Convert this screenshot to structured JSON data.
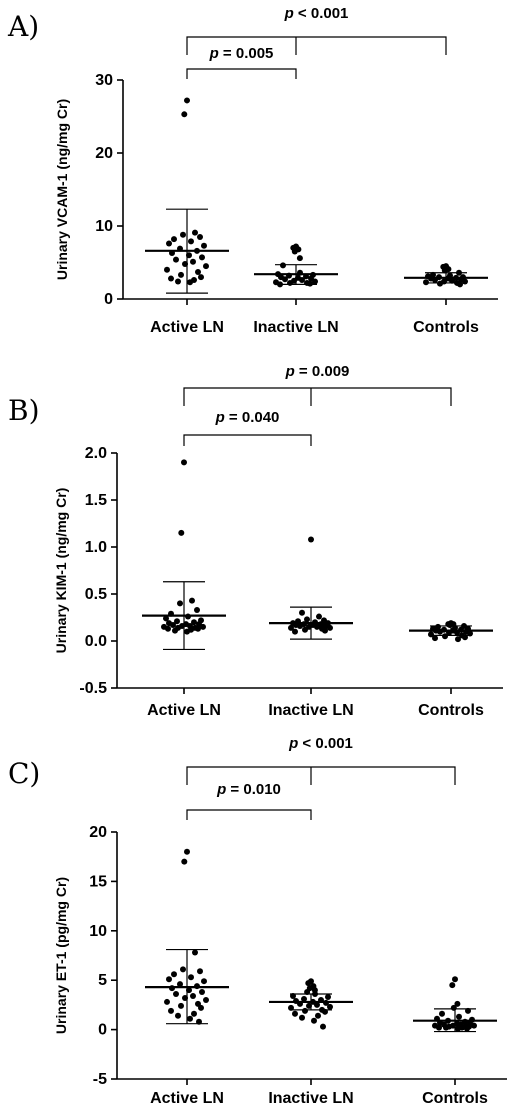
{
  "chart_data": [
    {
      "type": "scatter",
      "panel_label": "A)",
      "ylabel": "Urinary VCAM-1 (ng/mg Cr)",
      "ylim": [
        0,
        30
      ],
      "yticks": [
        0,
        10,
        20,
        30
      ],
      "categories": [
        "Active LN",
        "Inactive LN",
        "Controls"
      ],
      "series": [
        {
          "values": [
            27.2,
            25.3,
            9.1,
            8.8,
            8.5,
            8.2,
            7.9,
            7.6,
            7.3,
            6.9,
            6.6,
            6.3,
            6.0,
            5.7,
            5.4,
            5.1,
            4.8,
            4.5,
            4.0,
            3.7,
            3.3,
            3.0,
            2.8,
            2.6,
            2.4,
            2.3
          ],
          "mean": 6.6,
          "sd_low": 0.8,
          "sd_high": 12.3
        },
        {
          "values": [
            7.2,
            7.0,
            6.8,
            6.5,
            5.6,
            4.6,
            3.6,
            3.4,
            3.3,
            3.2,
            3.1,
            3.0,
            2.9,
            2.8,
            2.7,
            2.6,
            2.5,
            2.4,
            2.3,
            2.2,
            2.2,
            2.1,
            2.0
          ],
          "mean": 3.4,
          "sd_low": 2.0,
          "sd_high": 4.7
        },
        {
          "values": [
            4.5,
            4.4,
            4.1,
            3.9,
            3.6,
            3.3,
            3.2,
            3.1,
            3.0,
            3.0,
            2.9,
            2.8,
            2.8,
            2.7,
            2.6,
            2.5,
            2.4,
            2.4,
            2.3,
            2.2,
            2.1,
            2.0
          ],
          "mean": 2.9,
          "sd_low": 2.2,
          "sd_high": 3.6
        }
      ],
      "comparisons": [
        {
          "from": 0,
          "to": 1,
          "p_symbol": "p",
          "p_rest": " = 0.005"
        },
        {
          "from": 0,
          "to": 2,
          "p_symbol": "p",
          "p_rest": " < 0.001"
        }
      ]
    },
    {
      "type": "scatter",
      "panel_label": "B)",
      "ylabel": "Urinary KIM-1 (ng/mg Cr)",
      "ylim": [
        -0.5,
        2.0
      ],
      "yticks": [
        -0.5,
        0.0,
        0.5,
        1.0,
        1.5,
        2.0
      ],
      "tick_labels": [
        "-0.5",
        "0.0",
        "0.5",
        "1.0",
        "1.5",
        "2.0"
      ],
      "categories": [
        "Active LN",
        "Inactive LN",
        "Controls"
      ],
      "series": [
        {
          "values": [
            1.9,
            1.15,
            0.43,
            0.4,
            0.33,
            0.29,
            0.26,
            0.24,
            0.22,
            0.21,
            0.2,
            0.19,
            0.18,
            0.18,
            0.17,
            0.16,
            0.16,
            0.15,
            0.15,
            0.14,
            0.14,
            0.13,
            0.13,
            0.12,
            0.11,
            0.1
          ],
          "mean": 0.27,
          "sd_low": -0.09,
          "sd_high": 0.63
        },
        {
          "values": [
            1.08,
            0.3,
            0.26,
            0.23,
            0.22,
            0.21,
            0.2,
            0.19,
            0.19,
            0.18,
            0.18,
            0.17,
            0.17,
            0.16,
            0.16,
            0.15,
            0.15,
            0.14,
            0.14,
            0.13,
            0.12,
            0.11,
            0.1
          ],
          "mean": 0.19,
          "sd_low": 0.02,
          "sd_high": 0.36
        },
        {
          "values": [
            0.19,
            0.18,
            0.18,
            0.17,
            0.16,
            0.15,
            0.14,
            0.13,
            0.13,
            0.12,
            0.12,
            0.11,
            0.11,
            0.1,
            0.1,
            0.09,
            0.09,
            0.08,
            0.07,
            0.06,
            0.05,
            0.04,
            0.03,
            0.02
          ],
          "mean": 0.11,
          "sd_low": 0.06,
          "sd_high": 0.16
        }
      ],
      "comparisons": [
        {
          "from": 0,
          "to": 1,
          "p_symbol": "p",
          "p_rest": " = 0.040"
        },
        {
          "from": 0,
          "to": 2,
          "p_symbol": "p",
          "p_rest": " = 0.009"
        }
      ]
    },
    {
      "type": "scatter",
      "panel_label": "C)",
      "ylabel": "Urinary ET-1 (pg/mg Cr)",
      "ylim": [
        -5,
        20
      ],
      "yticks": [
        -5,
        0,
        5,
        10,
        15,
        20
      ],
      "categories": [
        "Active LN",
        "Inactive LN",
        "Controls"
      ],
      "series": [
        {
          "values": [
            18.0,
            17.0,
            7.8,
            6.1,
            5.9,
            5.6,
            5.3,
            5.1,
            4.9,
            4.6,
            4.4,
            4.2,
            4.0,
            3.8,
            3.6,
            3.4,
            3.2,
            3.0,
            2.8,
            2.6,
            2.4,
            2.2,
            1.9,
            1.6,
            1.4,
            1.1,
            0.8
          ],
          "mean": 4.3,
          "sd_low": 0.6,
          "sd_high": 8.1
        },
        {
          "values": [
            4.9,
            4.7,
            4.4,
            4.2,
            4.0,
            3.8,
            3.6,
            3.4,
            3.3,
            3.1,
            3.0,
            2.9,
            2.8,
            2.7,
            2.6,
            2.5,
            2.4,
            2.3,
            2.2,
            2.0,
            1.9,
            1.8,
            1.6,
            1.4,
            1.2,
            0.9,
            0.3
          ],
          "mean": 2.8,
          "sd_low": 2.0,
          "sd_high": 3.6
        },
        {
          "values": [
            5.1,
            4.5,
            2.6,
            2.2,
            1.9,
            1.6,
            1.3,
            1.1,
            1.0,
            0.9,
            0.8,
            0.7,
            0.6,
            0.6,
            0.5,
            0.5,
            0.4,
            0.4,
            0.4,
            0.3,
            0.3,
            0.3,
            0.2,
            0.2,
            0.2,
            0.1,
            0.1
          ],
          "mean": 0.9,
          "sd_low": -0.2,
          "sd_high": 2.1
        }
      ],
      "comparisons": [
        {
          "from": 0,
          "to": 1,
          "p_symbol": "p",
          "p_rest": " = 0.010"
        },
        {
          "from": 0,
          "to": 2,
          "p_symbol": "p",
          "p_rest": " < 0.001"
        }
      ]
    }
  ]
}
